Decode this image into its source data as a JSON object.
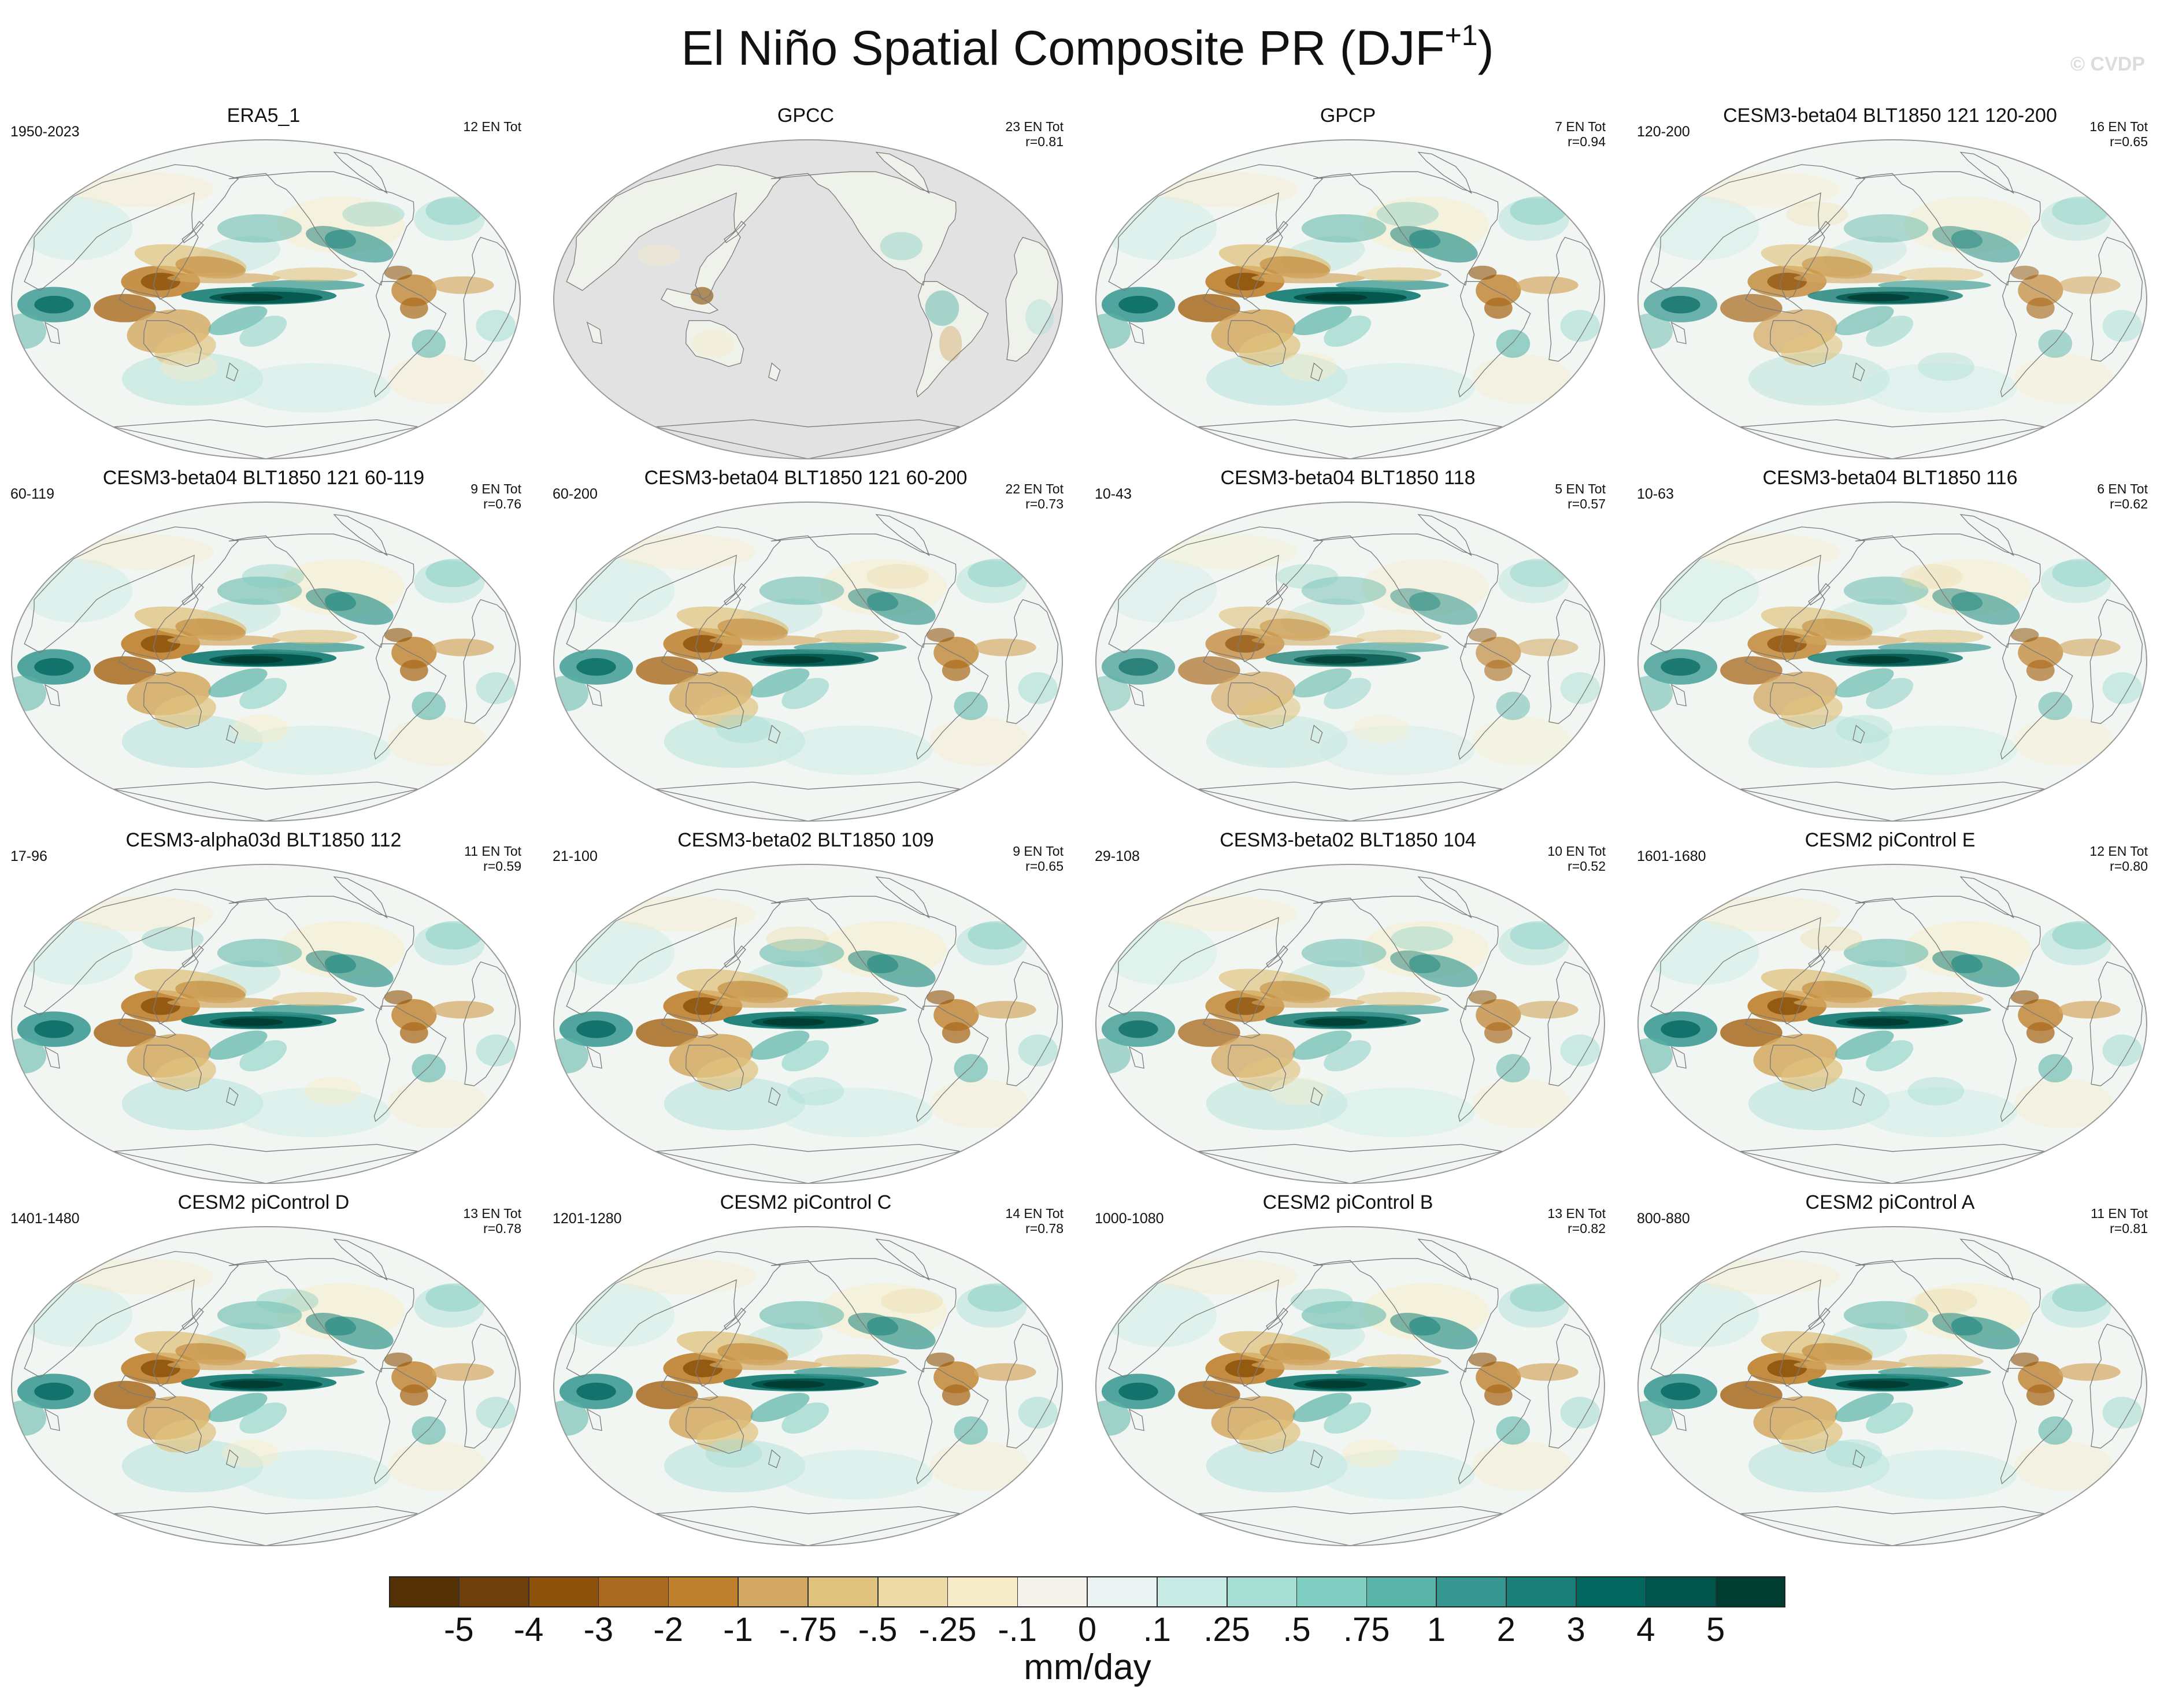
{
  "figure": {
    "title_main": "El Niño Spatial Composite PR (DJF",
    "title_sup": "+1",
    "title_end": ")",
    "watermark": "© CVDP"
  },
  "panels": [
    {
      "title": "ERA5_1",
      "years": "1950-2023",
      "events": "12 EN Tot",
      "corr": "",
      "ocean_masked": false,
      "strength": 0.95
    },
    {
      "title": "GPCC",
      "years": "",
      "events": "23 EN Tot",
      "corr": "r=0.81",
      "ocean_masked": true,
      "strength": 0.7
    },
    {
      "title": "GPCP",
      "years": "",
      "events": "7 EN Tot",
      "corr": "r=0.94",
      "ocean_masked": false,
      "strength": 1.0
    },
    {
      "title": "CESM3-beta04 BLT1850 121 120-200",
      "years": "120-200",
      "events": "16 EN Tot",
      "corr": "r=0.65",
      "ocean_masked": false,
      "strength": 0.85
    },
    {
      "title": "CESM3-beta04 BLT1850 121 60-119",
      "years": "60-119",
      "events": "9 EN Tot",
      "corr": "r=0.76",
      "ocean_masked": false,
      "strength": 1.0
    },
    {
      "title": "CESM3-beta04 BLT1850 121 60-200",
      "years": "60-200",
      "events": "22 EN Tot",
      "corr": "r=0.73",
      "ocean_masked": false,
      "strength": 0.95
    },
    {
      "title": "CESM3-beta04 BLT1850 118",
      "years": "10-43",
      "events": "5 EN Tot",
      "corr": "r=0.57",
      "ocean_masked": false,
      "strength": 0.8
    },
    {
      "title": "CESM3-beta04 BLT1850 116",
      "years": "10-63",
      "events": "6 EN Tot",
      "corr": "r=0.62",
      "ocean_masked": false,
      "strength": 0.9
    },
    {
      "title": "CESM3-alpha03d BLT1850 112",
      "years": "17-96",
      "events": "11 EN Tot",
      "corr": "r=0.59",
      "ocean_masked": false,
      "strength": 1.0
    },
    {
      "title": "CESM3-beta02 BLT1850 109",
      "years": "21-100",
      "events": "9 EN Tot",
      "corr": "r=0.65",
      "ocean_masked": false,
      "strength": 1.0
    },
    {
      "title": "CESM3-beta02 BLT1850 104",
      "years": "29-108",
      "events": "10 EN Tot",
      "corr": "r=0.52",
      "ocean_masked": false,
      "strength": 0.9
    },
    {
      "title": "CESM2 piControl E",
      "years": "1601-1680",
      "events": "12 EN Tot",
      "corr": "r=0.80",
      "ocean_masked": false,
      "strength": 1.0
    },
    {
      "title": "CESM2 piControl D",
      "years": "1401-1480",
      "events": "13 EN Tot",
      "corr": "r=0.78",
      "ocean_masked": false,
      "strength": 1.0
    },
    {
      "title": "CESM2 piControl C",
      "years": "1201-1280",
      "events": "14 EN Tot",
      "corr": "r=0.78",
      "ocean_masked": false,
      "strength": 1.0
    },
    {
      "title": "CESM2 piControl B",
      "years": "1000-1080",
      "events": "13 EN Tot",
      "corr": "r=0.82",
      "ocean_masked": false,
      "strength": 1.0
    },
    {
      "title": "CESM2 piControl A",
      "years": "800-880",
      "events": "11 EN Tot",
      "corr": "r=0.81",
      "ocean_masked": false,
      "strength": 1.0
    }
  ],
  "colorbar": {
    "units": "mm/day",
    "tick_labels": [
      "-5",
      "-4",
      "-3",
      "-2",
      "-1",
      "-.75",
      "-.5",
      "-.25",
      "-.1",
      "0",
      ".1",
      ".25",
      ".5",
      ".75",
      "1",
      "2",
      "3",
      "4",
      "5"
    ],
    "colors": [
      "#543005",
      "#6f3f0b",
      "#8c510a",
      "#a86a1e",
      "#bf812d",
      "#d3a862",
      "#dfc27d",
      "#ecdba7",
      "#f6ebc8",
      "#f5f2ec",
      "#eaf3f2",
      "#c7eae5",
      "#a7ded4",
      "#80cdc1",
      "#5ab4a8",
      "#35978f",
      "#1a7f76",
      "#01665e",
      "#01544b",
      "#003c30"
    ]
  }
}
